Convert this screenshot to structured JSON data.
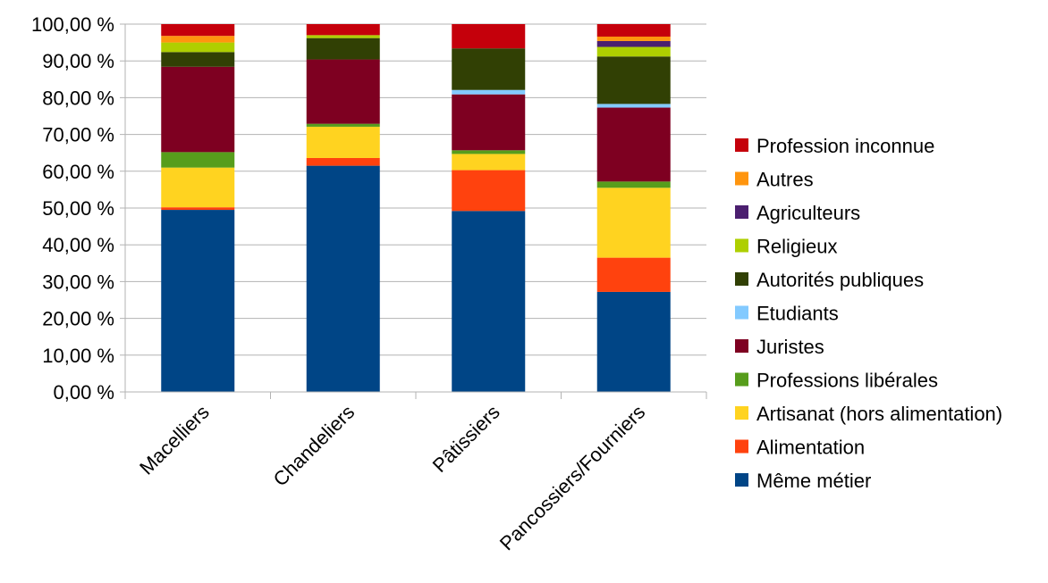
{
  "chart_data": {
    "type": "bar",
    "stacked": true,
    "percent": true,
    "categories": [
      "Macelliers",
      "Chandeliers",
      "Pâtissiers",
      "Pancossiers/Fourniers"
    ],
    "ylim": [
      0,
      100
    ],
    "yticks": [
      "0,00 %",
      "10,00 %",
      "20,00 %",
      "30,00 %",
      "40,00 %",
      "50,00 %",
      "60,00 %",
      "70,00 %",
      "80,00 %",
      "90,00 %",
      "100,00 %"
    ],
    "grid": true,
    "legend_position": "right",
    "series": [
      {
        "name": "Même métier",
        "color": "#004586",
        "values": [
          49.5,
          61.5,
          49.2,
          27.2
        ]
      },
      {
        "name": "Alimentation",
        "color": "#ff420e",
        "values": [
          0.7,
          2.1,
          11.1,
          9.3
        ]
      },
      {
        "name": "Artisanat (hors alimentation)",
        "color": "#ffd320",
        "values": [
          10.8,
          8.5,
          4.4,
          19.0
        ]
      },
      {
        "name": "Professions libérales",
        "color": "#579d1c",
        "values": [
          4.2,
          0.8,
          1.0,
          1.7
        ]
      },
      {
        "name": "Juristes",
        "color": "#7e0021",
        "values": [
          23.2,
          17.5,
          15.2,
          20.1
        ]
      },
      {
        "name": "Etudiants",
        "color": "#83caff",
        "values": [
          0,
          0,
          1.2,
          1.0
        ]
      },
      {
        "name": "Autorités publiques",
        "color": "#314004",
        "values": [
          4.0,
          5.8,
          11.3,
          12.9
        ]
      },
      {
        "name": "Religieux",
        "color": "#aecf00",
        "values": [
          2.6,
          0.8,
          0,
          2.6
        ]
      },
      {
        "name": "Agriculteurs",
        "color": "#4b1f6f",
        "values": [
          0,
          0,
          0,
          1.6
        ]
      },
      {
        "name": "Autres",
        "color": "#ff950e",
        "values": [
          1.8,
          0,
          0,
          1.2
        ]
      },
      {
        "name": "Profession inconnue",
        "color": "#c5000b",
        "values": [
          3.2,
          3.0,
          6.6,
          3.4
        ]
      }
    ]
  }
}
